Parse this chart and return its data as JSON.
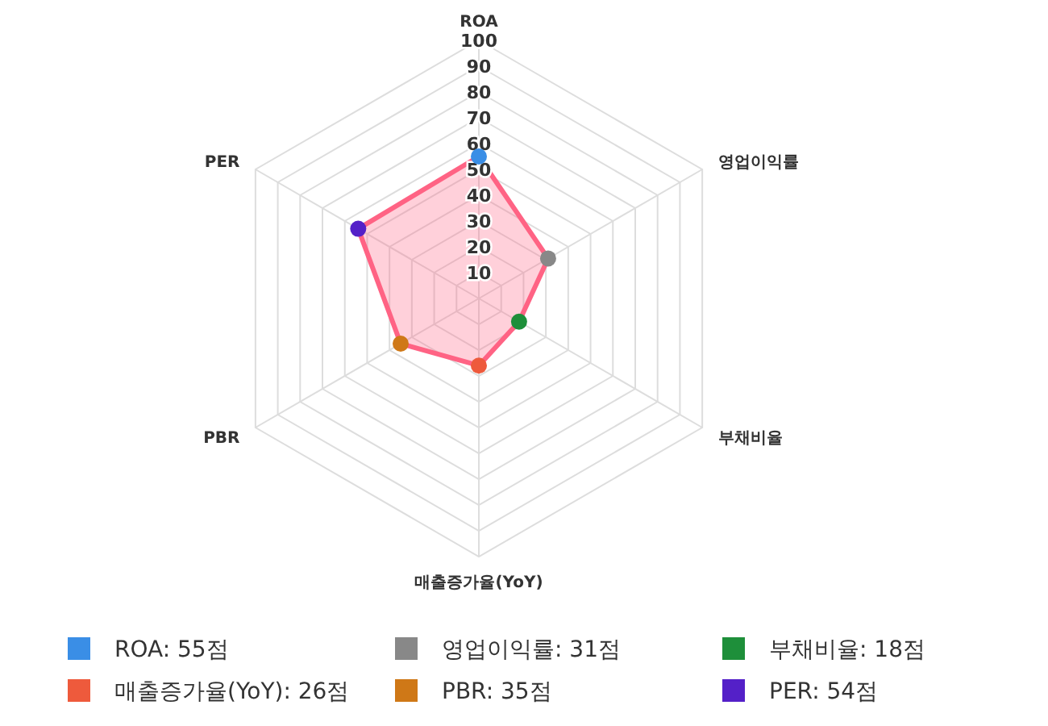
{
  "chart_data": {
    "type": "radar",
    "categories": [
      "ROA",
      "영업이익률",
      "부채비율",
      "매출증가율(YoY)",
      "PBR",
      "PER"
    ],
    "series": [
      {
        "color": "#ff6384",
        "values": [
          55,
          31,
          18,
          26,
          35,
          54
        ],
        "colors": [
          "#3a8ee6",
          "#888888",
          "#1e8f3a",
          "#ee5a3c",
          "#cf7817",
          "#5420c8"
        ]
      }
    ],
    "annotations": [
      "ROA: 55점",
      "영업이익률: 31점",
      "부채비율: 18점",
      "매출증가율(YoY): 26점",
      "PBR: 35점",
      "PER: 54점"
    ],
    "ylim": [
      0,
      100
    ],
    "yticks": [
      10,
      20,
      30,
      40,
      50,
      60,
      70,
      80,
      90,
      100
    ],
    "grid": true,
    "marker": "circle"
  }
}
